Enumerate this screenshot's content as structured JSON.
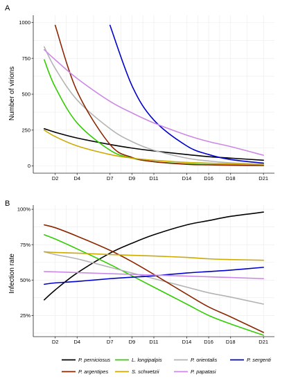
{
  "chart_data": [
    {
      "panel": "A",
      "type": "line",
      "ylabel": "Number of virions",
      "x_ticks": [
        {
          "day": 2,
          "label": "D2"
        },
        {
          "day": 4,
          "label": "D4"
        },
        {
          "day": 7,
          "label": "D7"
        },
        {
          "day": 9,
          "label": "D9"
        },
        {
          "day": 11,
          "label": "D11"
        },
        {
          "day": 14,
          "label": "D14"
        },
        {
          "day": 16,
          "label": "D16"
        },
        {
          "day": 18,
          "label": "D18"
        },
        {
          "day": 21,
          "label": "D21"
        }
      ],
      "y_ticks": [
        0,
        250,
        500,
        750,
        1000
      ],
      "ylim": [
        0,
        1000
      ],
      "grid": true,
      "series": [
        {
          "name": "P. perniciosus",
          "color": "#000000",
          "x": [
            1,
            2,
            4,
            7,
            9,
            11,
            14,
            16,
            18,
            21
          ],
          "y": [
            260,
            235,
            195,
            150,
            125,
            105,
            80,
            65,
            55,
            40
          ]
        },
        {
          "name": "L. longipalpis",
          "color": "#33cc00",
          "x": [
            1,
            2,
            4,
            7,
            9,
            11,
            14,
            16,
            18,
            21
          ],
          "y": [
            740,
            550,
            300,
            110,
            55,
            30,
            15,
            10,
            7,
            5
          ]
        },
        {
          "name": "P. orientalis",
          "color": "#b3b3b3",
          "x": [
            1,
            2,
            4,
            7,
            9,
            11,
            14,
            16,
            18,
            21
          ],
          "y": [
            830,
            680,
            460,
            260,
            170,
            110,
            55,
            35,
            22,
            12
          ]
        },
        {
          "name": "P. sergenti",
          "color": "#0000cc",
          "x": [
            7,
            9,
            11,
            14,
            16,
            18,
            21
          ],
          "y": [
            980,
            560,
            320,
            140,
            80,
            45,
            20
          ]
        },
        {
          "name": "P. argentipes",
          "color": "#8b2500",
          "x": [
            2,
            4,
            7,
            9,
            11,
            14,
            16,
            18,
            21
          ],
          "y": [
            980,
            520,
            150,
            60,
            30,
            12,
            8,
            5,
            3
          ]
        },
        {
          "name": "S. schwetzii",
          "color": "#ccaa00",
          "x": [
            1,
            2,
            4,
            7,
            9,
            11,
            14,
            16,
            18,
            21
          ],
          "y": [
            250,
            205,
            140,
            80,
            55,
            40,
            25,
            20,
            15,
            10
          ]
        },
        {
          "name": "P. papatasi",
          "color": "#cc88e6",
          "x": [
            1,
            2,
            4,
            7,
            9,
            11,
            14,
            16,
            18,
            21
          ],
          "y": [
            810,
            740,
            610,
            450,
            370,
            300,
            215,
            170,
            135,
            75
          ]
        }
      ]
    },
    {
      "panel": "B",
      "type": "line",
      "ylabel": "Infection rate",
      "x_ticks": [
        {
          "day": 2,
          "label": "D2"
        },
        {
          "day": 4,
          "label": "D4"
        },
        {
          "day": 7,
          "label": "D7"
        },
        {
          "day": 9,
          "label": "D9"
        },
        {
          "day": 11,
          "label": "D11"
        },
        {
          "day": 14,
          "label": "D14"
        },
        {
          "day": 16,
          "label": "D16"
        },
        {
          "day": 18,
          "label": "D18"
        },
        {
          "day": 21,
          "label": "D21"
        }
      ],
      "y_ticks": [
        {
          "value": 25,
          "label": "25%"
        },
        {
          "value": 50,
          "label": "50%"
        },
        {
          "value": 75,
          "label": "75%"
        },
        {
          "value": 100,
          "label": "100%"
        }
      ],
      "ylim": [
        10,
        100
      ],
      "grid": true,
      "series": [
        {
          "name": "P. perniciosus",
          "color": "#000000",
          "x": [
            1,
            2,
            4,
            7,
            9,
            11,
            14,
            16,
            18,
            21
          ],
          "y": [
            36,
            43,
            55,
            69,
            76,
            82,
            89,
            92,
            95,
            98
          ]
        },
        {
          "name": "L. longipalpis",
          "color": "#33cc00",
          "x": [
            1,
            2,
            4,
            7,
            9,
            11,
            14,
            16,
            18,
            21
          ],
          "y": [
            82,
            79,
            72,
            61,
            53,
            45,
            33,
            25,
            19,
            11
          ]
        },
        {
          "name": "P. orientalis",
          "color": "#b3b3b3",
          "x": [
            1,
            2,
            4,
            7,
            9,
            11,
            14,
            16,
            18,
            21
          ],
          "y": [
            70,
            68,
            65,
            59,
            55,
            51,
            45,
            41,
            38,
            33
          ]
        },
        {
          "name": "P. sergenti",
          "color": "#0000cc",
          "x": [
            1,
            2,
            4,
            7,
            9,
            11,
            14,
            16,
            18,
            21
          ],
          "y": [
            47,
            48,
            49,
            51,
            52,
            53,
            55,
            56,
            57,
            59
          ]
        },
        {
          "name": "P. argentipes",
          "color": "#8b2500",
          "x": [
            1,
            2,
            4,
            7,
            9,
            11,
            14,
            16,
            18,
            21
          ],
          "y": [
            89,
            87,
            81,
            71,
            63,
            54,
            40,
            31,
            24,
            13
          ]
        },
        {
          "name": "S. schwetzii",
          "color": "#ccaa00",
          "x": [
            1,
            2,
            4,
            7,
            9,
            11,
            14,
            16,
            18,
            21
          ],
          "y": [
            70,
            69.5,
            69,
            68,
            67.5,
            67,
            66,
            65,
            64.5,
            64
          ]
        },
        {
          "name": "P. papatasi",
          "color": "#cc88e6",
          "x": [
            1,
            2,
            4,
            7,
            9,
            11,
            14,
            16,
            18,
            21
          ],
          "y": [
            56,
            55.8,
            55.3,
            54.5,
            54,
            53.5,
            52.8,
            52.3,
            51.8,
            51
          ]
        }
      ]
    }
  ],
  "legend": {
    "position": "bottom",
    "rows": [
      [
        "P. perniciosus",
        "L. longipalpis",
        "P. orientalis",
        "P. sergenti"
      ],
      [
        "P. argentipes",
        "S. schwetzii",
        "P. papatasi"
      ]
    ]
  }
}
